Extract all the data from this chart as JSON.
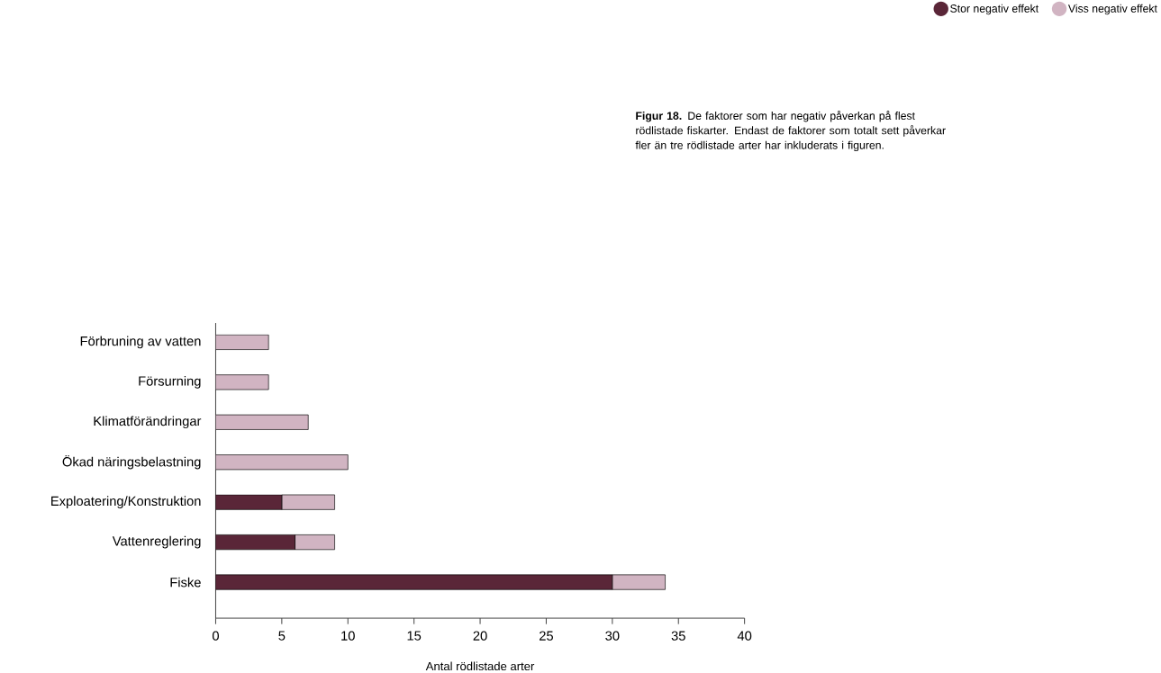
{
  "chart_data": {
    "type": "bar",
    "orientation": "horizontal",
    "stacked": true,
    "categories": [
      "Förbruning av vatten",
      "Försurning",
      "Klimatförändringar",
      "Ökad näringsbelastning",
      "Exploatering/Konstruktion",
      "Vattenreglering",
      "Fiske"
    ],
    "series": [
      {
        "name": "Stor negativ effekt",
        "color": "#5a2638",
        "values": [
          0,
          0,
          0,
          0,
          5,
          6,
          30
        ]
      },
      {
        "name": "Viss negativ effekt",
        "color": "#d1b4c2",
        "values": [
          4,
          4,
          7,
          10,
          4,
          3,
          4
        ]
      }
    ],
    "xlabel": "Antal rödlistade arter",
    "xlim": [
      0,
      40
    ],
    "xticks": [
      0,
      5,
      10,
      15,
      20,
      25,
      30,
      35,
      40
    ],
    "grid": false,
    "legend": "top right",
    "annotations": [
      "**Figur 18.** De faktorer som har negativ påverkan på flest rödlistade fiskarter. Endast de faktorer som totalt sett påverkar fler än tre rödlistade arter har inkluderats i figuren."
    ]
  }
}
